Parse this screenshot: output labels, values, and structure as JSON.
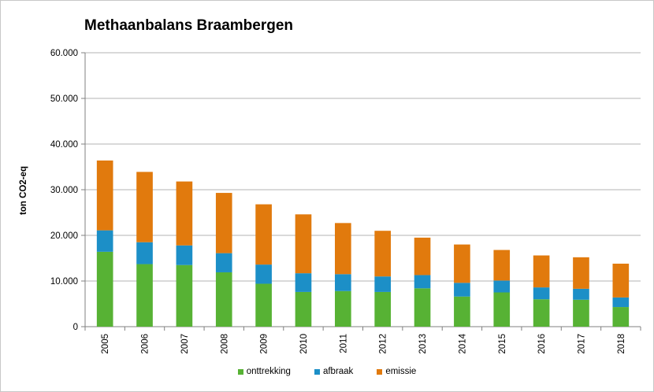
{
  "chart_data": {
    "type": "bar",
    "stacked": true,
    "title": "Methaanbalans Braambergen",
    "xlabel": "",
    "ylabel": "ton CO2-eq",
    "ylim": [
      0,
      60000
    ],
    "yticks": [
      "0",
      "10.000",
      "20.000",
      "30.000",
      "40.000",
      "50.000",
      "60.000"
    ],
    "grid": true,
    "legend_position": "bottom",
    "categories": [
      "2005",
      "2006",
      "2007",
      "2008",
      "2009",
      "2010",
      "2011",
      "2012",
      "2013",
      "2014",
      "2015",
      "2016",
      "2017",
      "2018"
    ],
    "series": [
      {
        "name": "onttrekking",
        "color": "#57b234",
        "values": [
          16400,
          13700,
          13500,
          11900,
          9400,
          7600,
          7800,
          7600,
          8400,
          6600,
          7500,
          6000,
          5900,
          4300
        ]
      },
      {
        "name": "afbraak",
        "color": "#1c8fc7",
        "values": [
          4700,
          4800,
          4300,
          4200,
          4200,
          4100,
          3700,
          3400,
          2900,
          3000,
          2600,
          2600,
          2400,
          2100
        ]
      },
      {
        "name": "emissie",
        "color": "#e17a0d",
        "values": [
          15300,
          15400,
          14000,
          13200,
          13200,
          12900,
          11200,
          10000,
          8200,
          8400,
          6700,
          7000,
          6900,
          7400
        ]
      }
    ]
  }
}
